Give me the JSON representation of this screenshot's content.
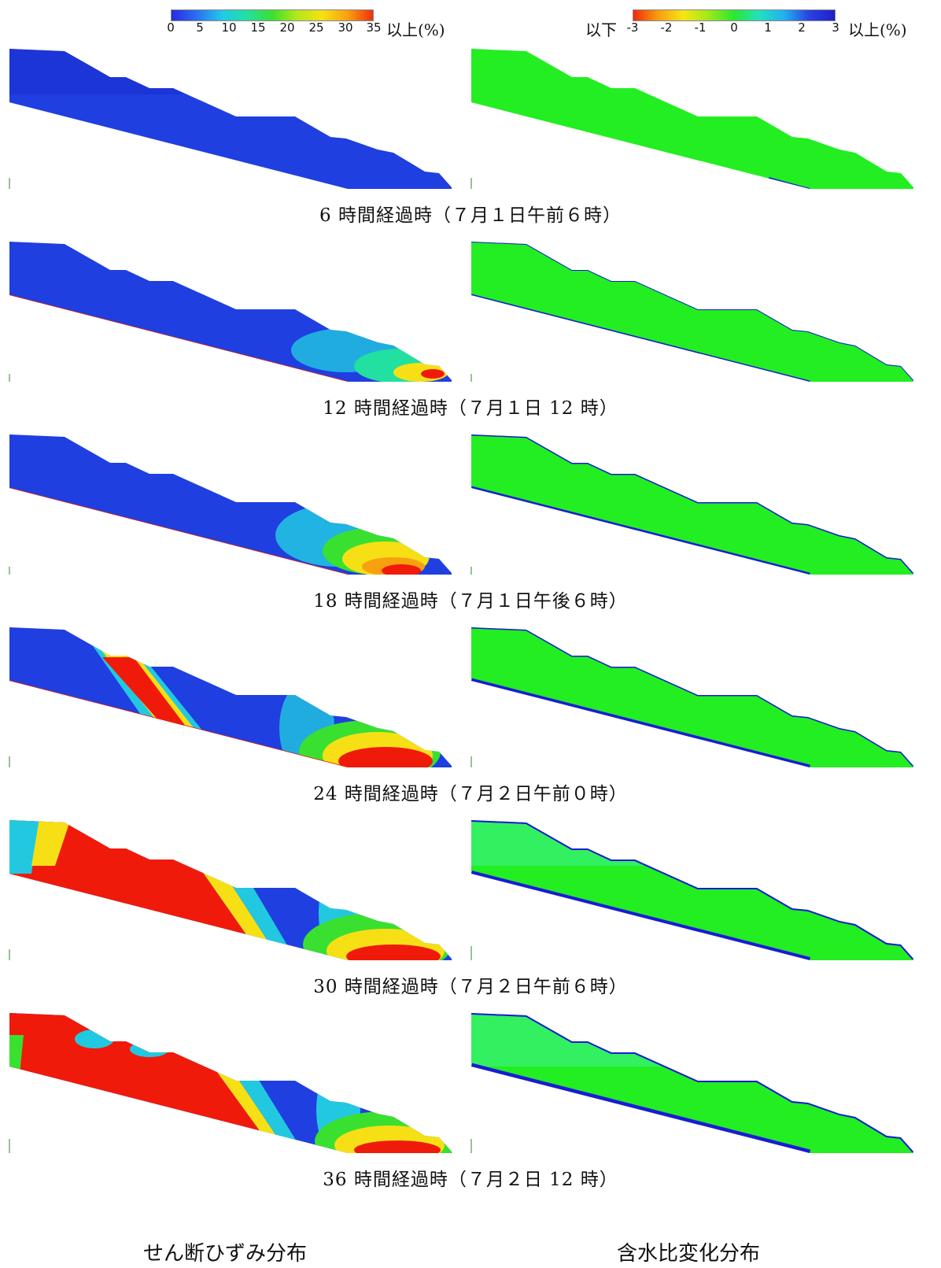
{
  "colorbars": {
    "shear": {
      "ticks": [
        "0",
        "5",
        "10",
        "15",
        "20",
        "25",
        "30",
        "35"
      ],
      "suffix": "以上(%)"
    },
    "moisture": {
      "prefix": "以下",
      "ticks": [
        "-3",
        "-2",
        "-1",
        "0",
        "1",
        "2",
        "3"
      ],
      "suffix": "以上(%)"
    }
  },
  "captions": [
    "6 時間経過時（７月１日午前６時）",
    "12 時間経過時（７月１日 12 時）",
    "18 時間経過時（７月１日午後６時）",
    "24 時間経過時（７月２日午前０時）",
    "30 時間経過時（７月２日午前６時）",
    "36 時間経過時（７月２日 12 時）"
  ],
  "columns": {
    "left_label": "せん断ひずみ分布",
    "right_label": "含水比変化分布"
  },
  "colors": {
    "shear_base": "#1f3fe0",
    "shear_mid": "#22c8e0",
    "shear_yellow": "#f6e015",
    "shear_high": "#f01a0a",
    "moisture_base": "#22ee22",
    "moisture_wet": "#1a1ad8"
  }
}
